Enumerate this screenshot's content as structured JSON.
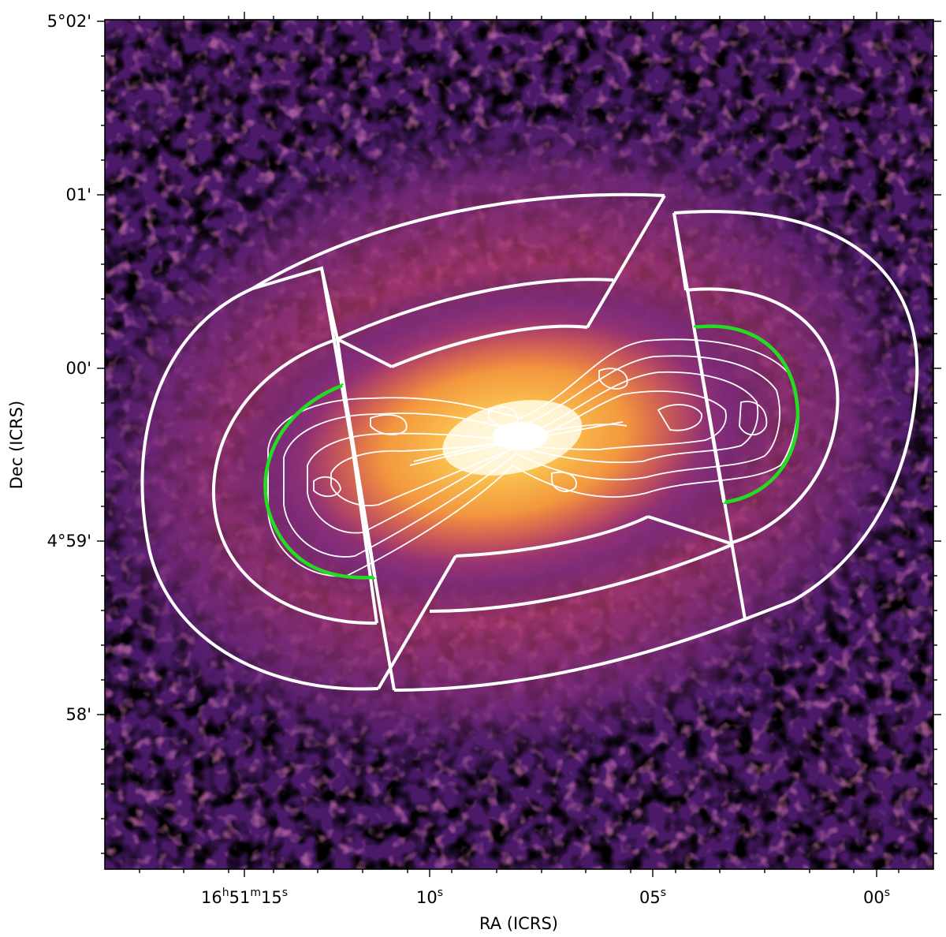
{
  "figure": {
    "xlabel": "RA (ICRS)",
    "ylabel": "Dec (ICRS)",
    "colormap": "inferno-like",
    "x_ticks": [
      {
        "h": "16",
        "m": "51",
        "s": "15",
        "label": "16h51m15s"
      },
      {
        "s": "10",
        "label": "10s"
      },
      {
        "s": "05",
        "label": "05s"
      },
      {
        "s": "00",
        "label": "00s"
      }
    ],
    "y_ticks": [
      {
        "label": "5°02'"
      },
      {
        "label": "01'"
      },
      {
        "label": "00'"
      },
      {
        "label": "4°59'"
      },
      {
        "label": "58'"
      }
    ],
    "overlay_colors": {
      "regions": "#ffffff",
      "contours": "#ffffff",
      "highlight_arcs": "#22dd22"
    }
  }
}
